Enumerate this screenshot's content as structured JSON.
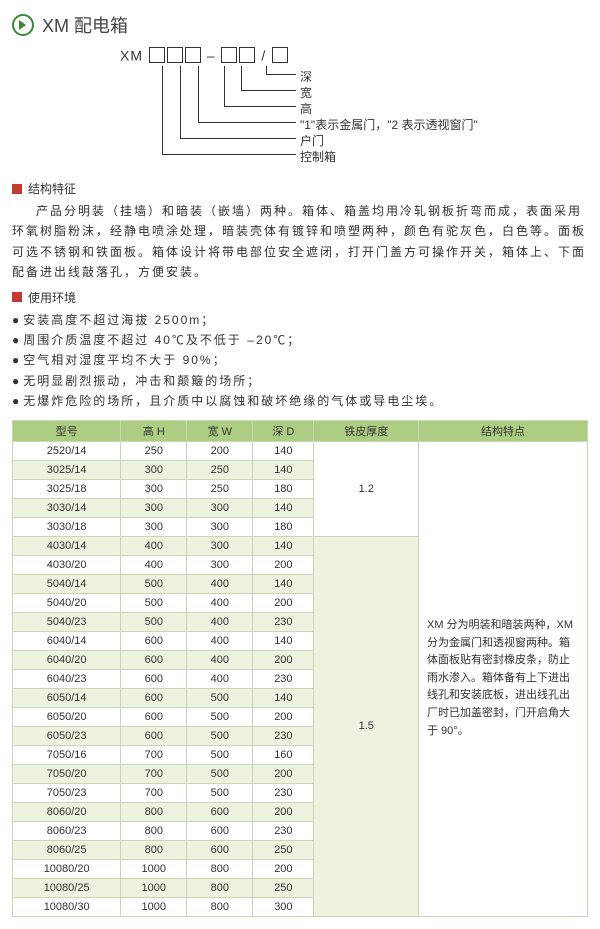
{
  "title": "XM 配电箱",
  "diagram": {
    "prefix": "XM",
    "dash": "–",
    "slash": "/",
    "labels": [
      "深",
      "宽",
      "高",
      "\"1\"表示金属门，\"2 表示透视窗门\"",
      "户门",
      "控制箱"
    ]
  },
  "sec1_title": "结构特征",
  "sec1_body": "产品分明装（挂墙）和暗装（嵌墙）两种。箱体、箱盖均用冷轧钢板折弯而成，表面采用环氧树脂粉沫，经静电喷涂处理，暗装壳体有镀锌和喷塑两种，颜色有驼灰色，白色等。面板可选不锈钢和铁面板。箱体设计将带电部位安全遮闭，打开门盖方可操作开关，箱体上、下面配备进出线敲落孔，方便安装。",
  "sec2_title": "使用环境",
  "env": [
    "安装高度不超过海拔 2500m；",
    "周围介质温度不超过 40℃及不低于 –20℃；",
    "空气相对湿度平均不大于 90%；",
    "无明显剧烈振动，冲击和颠簸的场所；",
    "无爆炸危险的场所，且介质中以腐蚀和破坏绝缘的气体或导电尘埃。"
  ],
  "table": {
    "headers": [
      "型号",
      "高 H",
      "宽 W",
      "深 D",
      "铁皮厚度",
      "结构特点"
    ],
    "thick1": "1.2",
    "thick2": "1.5",
    "feature": "XM 分为明装和暗装两种，XM 分为金属门和透视窗两种。箱体面板贴有密封橡皮条，防止雨水渗入。箱体备有上下进出线孔和安装底板，进出线孔出厂时已加盖密封，门开启角大于 90°。",
    "rows1": [
      [
        "2520/14",
        "250",
        "200",
        "140"
      ],
      [
        "3025/14",
        "300",
        "250",
        "140"
      ],
      [
        "3025/18",
        "300",
        "250",
        "180"
      ],
      [
        "3030/14",
        "300",
        "300",
        "140"
      ],
      [
        "3030/18",
        "300",
        "300",
        "180"
      ]
    ],
    "rows2": [
      [
        "4030/14",
        "400",
        "300",
        "140"
      ],
      [
        "4030/20",
        "400",
        "300",
        "200"
      ],
      [
        "5040/14",
        "500",
        "400",
        "140"
      ],
      [
        "5040/20",
        "500",
        "400",
        "200"
      ],
      [
        "5040/23",
        "500",
        "400",
        "230"
      ],
      [
        "6040/14",
        "600",
        "400",
        "140"
      ],
      [
        "6040/20",
        "600",
        "400",
        "200"
      ],
      [
        "6040/23",
        "600",
        "400",
        "230"
      ],
      [
        "6050/14",
        "600",
        "500",
        "140"
      ],
      [
        "6050/20",
        "600",
        "500",
        "200"
      ],
      [
        "6050/23",
        "600",
        "500",
        "230"
      ],
      [
        "7050/16",
        "700",
        "500",
        "160"
      ],
      [
        "7050/20",
        "700",
        "500",
        "200"
      ],
      [
        "7050/23",
        "700",
        "500",
        "230"
      ],
      [
        "8060/20",
        "800",
        "600",
        "200"
      ],
      [
        "8060/23",
        "800",
        "600",
        "230"
      ],
      [
        "8060/25",
        "800",
        "600",
        "250"
      ],
      [
        "10080/20",
        "1000",
        "800",
        "200"
      ],
      [
        "10080/25",
        "1000",
        "800",
        "250"
      ],
      [
        "10080/30",
        "1000",
        "800",
        "300"
      ]
    ]
  }
}
